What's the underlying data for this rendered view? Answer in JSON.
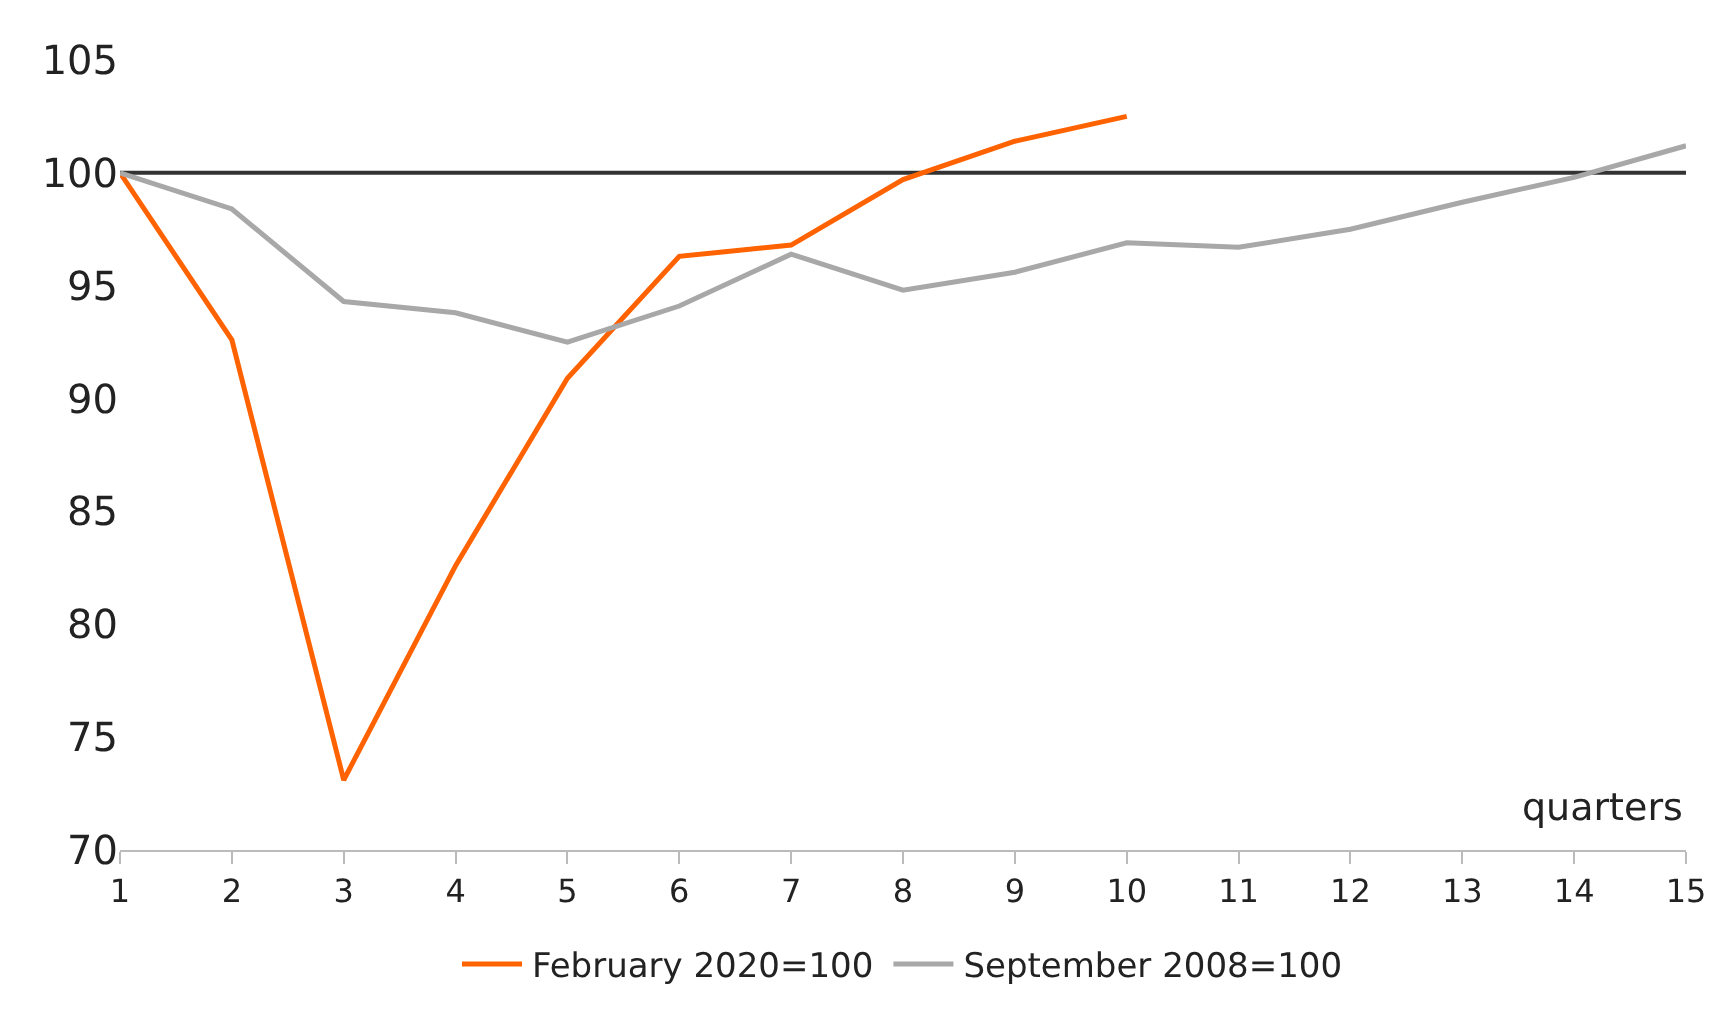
{
  "chart_data": {
    "type": "line",
    "xlabel": "quarters",
    "x": [
      1,
      2,
      3,
      4,
      5,
      6,
      7,
      8,
      9,
      10,
      11,
      12,
      13,
      14,
      15
    ],
    "series": [
      {
        "name": "February 2020=100",
        "color": "#ff6200",
        "values": [
          100,
          92.6,
          73.1,
          82.6,
          90.9,
          96.3,
          96.8,
          99.7,
          101.4,
          102.5,
          null,
          null,
          null,
          null,
          null
        ]
      },
      {
        "name": "September 2008=100",
        "color": "#a8a8a8",
        "values": [
          100,
          98.4,
          94.3,
          93.8,
          92.5,
          94.1,
          96.4,
          94.8,
          95.6,
          96.9,
          96.7,
          97.5,
          98.7,
          99.8,
          101.2
        ]
      }
    ],
    "xlim": [
      1,
      15
    ],
    "xticks": [
      1,
      2,
      3,
      4,
      5,
      6,
      7,
      8,
      9,
      10,
      11,
      12,
      13,
      14,
      15
    ],
    "ylim": [
      70,
      105
    ],
    "yticks": [
      70,
      75,
      80,
      85,
      90,
      95,
      100,
      105
    ],
    "ref_lines": [
      {
        "axis": "y",
        "value": 100,
        "color": "#333333"
      }
    ],
    "grid": false,
    "legend": "bottom",
    "marker": "none",
    "line_style": "solid"
  }
}
